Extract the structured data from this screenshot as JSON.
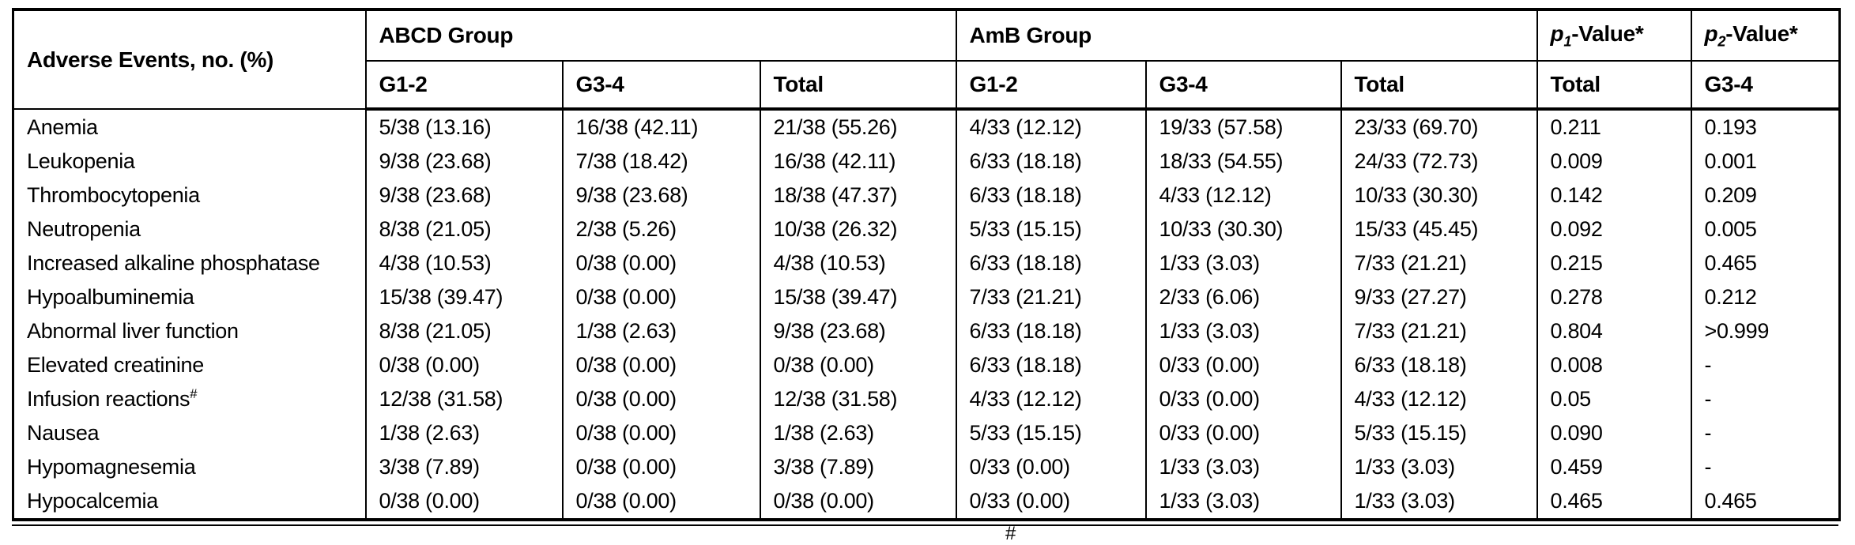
{
  "table": {
    "corner_header": "Adverse Events, no. (%)",
    "groups": [
      {
        "label": "ABCD Group",
        "columns": [
          "G1-2",
          "G3-4",
          "Total"
        ]
      },
      {
        "label": "AmB Group",
        "columns": [
          "G1-2",
          "G3-4",
          "Total"
        ]
      }
    ],
    "p_columns": [
      {
        "prefix": "p",
        "subscript": "1",
        "suffix": "-Value*",
        "sub_header": "Total"
      },
      {
        "prefix": "p",
        "subscript": "2",
        "suffix": "-Value*",
        "sub_header": "G3-4"
      }
    ],
    "rows": [
      {
        "label": "Anemia",
        "sup": "",
        "values": [
          "5/38 (13.16)",
          "16/38 (42.11)",
          "21/38 (55.26)",
          "4/33 (12.12)",
          "19/33 (57.58)",
          "23/33 (69.70)",
          "0.211",
          "0.193"
        ]
      },
      {
        "label": "Leukopenia",
        "sup": "",
        "values": [
          "9/38 (23.68)",
          "7/38 (18.42)",
          "16/38 (42.11)",
          "6/33 (18.18)",
          "18/33 (54.55)",
          "24/33 (72.73)",
          "0.009",
          "0.001"
        ]
      },
      {
        "label": "Thrombocytopenia",
        "sup": "",
        "values": [
          "9/38 (23.68)",
          "9/38 (23.68)",
          "18/38 (47.37)",
          "6/33 (18.18)",
          "4/33 (12.12)",
          "10/33 (30.30)",
          "0.142",
          "0.209"
        ]
      },
      {
        "label": "Neutropenia",
        "sup": "",
        "values": [
          "8/38 (21.05)",
          "2/38 (5.26)",
          "10/38 (26.32)",
          "5/33 (15.15)",
          "10/33 (30.30)",
          "15/33 (45.45)",
          "0.092",
          "0.005"
        ]
      },
      {
        "label": "Increased alkaline phosphatase",
        "sup": "",
        "values": [
          "4/38 (10.53)",
          "0/38 (0.00)",
          "4/38 (10.53)",
          "6/33 (18.18)",
          "1/33 (3.03)",
          "7/33 (21.21)",
          "0.215",
          "0.465"
        ]
      },
      {
        "label": "Hypoalbuminemia",
        "sup": "",
        "values": [
          "15/38 (39.47)",
          "0/38 (0.00)",
          "15/38 (39.47)",
          "7/33 (21.21)",
          "2/33 (6.06)",
          "9/33 (27.27)",
          "0.278",
          "0.212"
        ]
      },
      {
        "label": "Abnormal liver function",
        "sup": "",
        "values": [
          "8/38 (21.05)",
          "1/38 (2.63)",
          "9/38 (23.68)",
          "6/33 (18.18)",
          "1/33 (3.03)",
          "7/33 (21.21)",
          "0.804",
          ">0.999"
        ]
      },
      {
        "label": "Elevated creatinine",
        "sup": "",
        "values": [
          "0/38 (0.00)",
          "0/38 (0.00)",
          "0/38 (0.00)",
          "6/33 (18.18)",
          "0/33 (0.00)",
          "6/33 (18.18)",
          "0.008",
          "-"
        ]
      },
      {
        "label": "Infusion reactions",
        "sup": "#",
        "values": [
          "12/38 (31.58)",
          "0/38 (0.00)",
          "12/38 (31.58)",
          "4/33 (12.12)",
          "0/33 (0.00)",
          "4/33 (12.12)",
          "0.05",
          "-"
        ]
      },
      {
        "label": "Nausea",
        "sup": "",
        "values": [
          "1/38 (2.63)",
          "0/38 (0.00)",
          "1/38 (2.63)",
          "5/33 (15.15)",
          "0/33 (0.00)",
          "5/33 (15.15)",
          "0.090",
          "-"
        ]
      },
      {
        "label": "Hypomagnesemia",
        "sup": "",
        "values": [
          "3/38 (7.89)",
          "0/38 (0.00)",
          "3/38 (7.89)",
          "0/33 (0.00)",
          "1/33 (3.03)",
          "1/33 (3.03)",
          "0.459",
          "-"
        ]
      },
      {
        "label": "Hypocalcemia",
        "sup": "",
        "values": [
          "0/38 (0.00)",
          "0/38 (0.00)",
          "0/38 (0.00)",
          "0/33 (0.00)",
          "1/33 (3.03)",
          "1/33 (3.03)",
          "0.465",
          "0.465"
        ]
      }
    ],
    "footnote_fragment": "#"
  }
}
